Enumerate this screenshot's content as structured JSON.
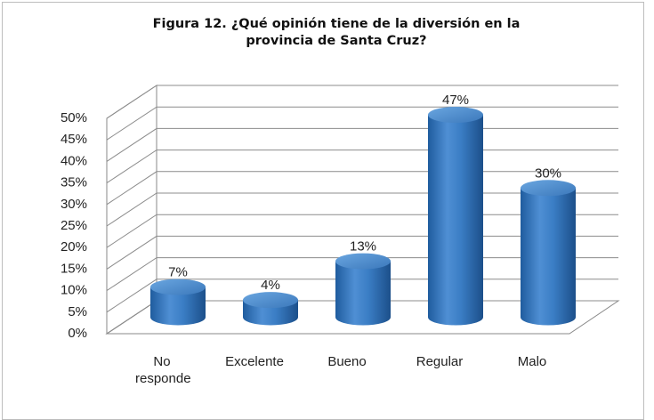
{
  "chart_data": {
    "type": "bar",
    "title": "Figura 12. ¿Qué opinión tiene de la diversión en la provincia de Santa Cruz?",
    "categories": [
      "No responde",
      "Excelente",
      "Bueno",
      "Regular",
      "Malo"
    ],
    "values": [
      7,
      4,
      13,
      47,
      30
    ],
    "value_labels": [
      "7%",
      "4%",
      "13%",
      "47%",
      "30%"
    ],
    "color": "#3a7dc4",
    "ylim": [
      0,
      50
    ],
    "yticks": [
      {
        "value": 0,
        "label": "0%"
      },
      {
        "value": 5,
        "label": "5%"
      },
      {
        "value": 10,
        "label": "10%"
      },
      {
        "value": 15,
        "label": "15%"
      },
      {
        "value": 20,
        "label": "20%"
      },
      {
        "value": 25,
        "label": "25%"
      },
      {
        "value": 30,
        "label": "30%"
      },
      {
        "value": 35,
        "label": "35%"
      },
      {
        "value": 40,
        "label": "40%"
      },
      {
        "value": 45,
        "label": "45%"
      },
      {
        "value": 50,
        "label": "50%"
      }
    ],
    "grid": true
  }
}
